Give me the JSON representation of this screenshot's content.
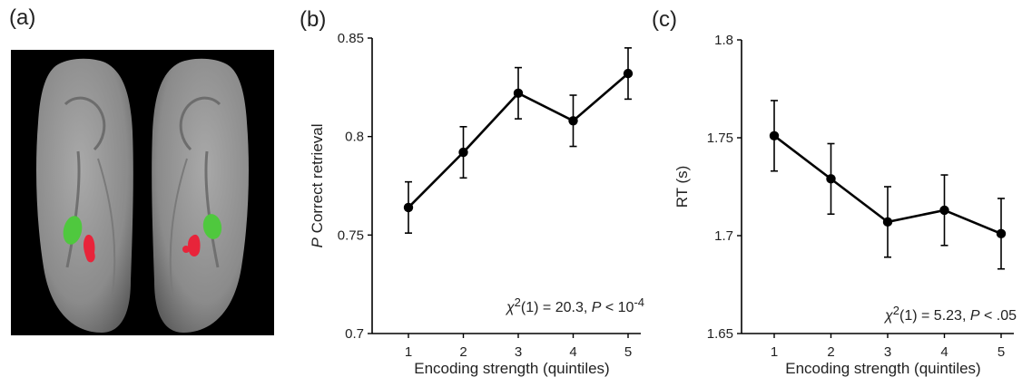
{
  "panels": {
    "a": "(a)",
    "b": "(b)",
    "c": "(c)"
  },
  "colors": {
    "brain": "#8f8f8f",
    "background": "#000000",
    "green_region": "#4fc83e",
    "red_region": "#e8243a",
    "line": "#000000"
  },
  "chart_data": [
    {
      "type": "line",
      "panel": "(b)",
      "xlabel": "Encoding strength (quintiles)",
      "ylabel_italic": "P",
      "ylabel_rest": " Correct retrieval",
      "categories": [
        "1",
        "2",
        "3",
        "4",
        "5"
      ],
      "ylim": [
        0.7,
        0.85
      ],
      "yticks": [
        0.7,
        0.75,
        0.8,
        0.85
      ],
      "ytick_labels": [
        "0.7",
        "0.75",
        "0.8",
        "0.85"
      ],
      "series": [
        {
          "values": [
            0.764,
            0.792,
            0.822,
            0.808,
            0.832
          ],
          "errors": [
            0.013,
            0.013,
            0.013,
            0.013,
            0.013
          ]
        }
      ],
      "stat_chi": "χ",
      "stat_df": "2",
      "stat_mid": "(1)  = 20.3, ",
      "stat_p": "P",
      "stat_end": " < 10",
      "stat_exp": "-4",
      "grid": false
    },
    {
      "type": "line",
      "panel": "(c)",
      "xlabel": "Encoding strength (quintiles)",
      "ylabel_italic": "",
      "ylabel_rest": "RT (s)",
      "categories": [
        "1",
        "2",
        "3",
        "4",
        "5"
      ],
      "ylim": [
        1.65,
        1.8
      ],
      "yticks": [
        1.65,
        1.7,
        1.75,
        1.8
      ],
      "ytick_labels": [
        "1.65",
        "1.7",
        "1.75",
        "1.8"
      ],
      "series": [
        {
          "values": [
            1.751,
            1.729,
            1.707,
            1.713,
            1.701
          ],
          "errors": [
            0.018,
            0.018,
            0.018,
            0.018,
            0.018
          ]
        }
      ],
      "stat_chi": "χ",
      "stat_df": "2",
      "stat_mid": "(1)  = 5.23, ",
      "stat_p": "P",
      "stat_end": " < .05",
      "stat_exp": "",
      "grid": false
    }
  ]
}
